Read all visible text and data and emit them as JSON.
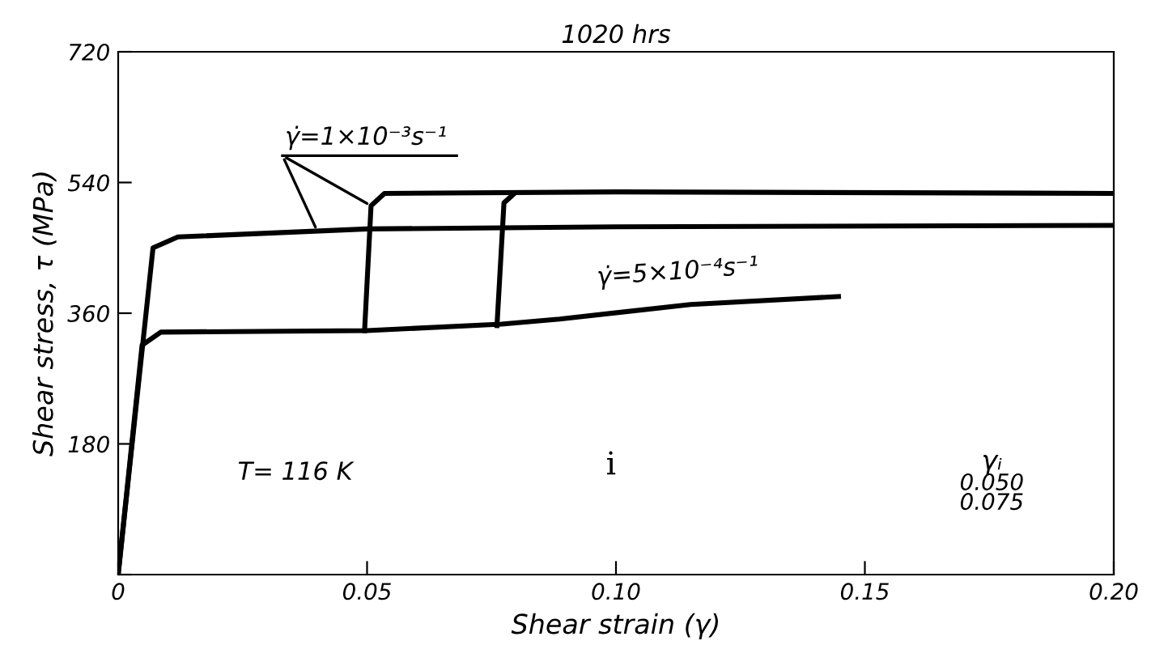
{
  "chart_data": {
    "type": "line",
    "title": "1020 hrs",
    "xlabel": "Shear strain (γ)",
    "ylabel": "Shear stress, τ (MPa)",
    "xlim": [
      0,
      0.2
    ],
    "ylim": [
      0,
      720
    ],
    "xticks": [
      {
        "value": 0,
        "label": "0"
      },
      {
        "value": 0.05,
        "label": "0.05"
      },
      {
        "value": 0.1,
        "label": "0.10"
      },
      {
        "value": 0.15,
        "label": "0.15"
      },
      {
        "value": 0.2,
        "label": "0.20"
      }
    ],
    "yticks": [
      {
        "value": 0,
        "label": null
      },
      180,
      360,
      540,
      720
    ],
    "grid": false,
    "legend": false,
    "marker": "none",
    "line_style": "solid",
    "series": [
      {
        "color": "#000000",
        "x": [
          0,
          0.007,
          0.012,
          0.05,
          0.1,
          0.2
        ],
        "values": [
          0,
          450,
          465,
          476,
          479,
          481
        ]
      },
      {
        "color": "#000000",
        "x": [
          0,
          0.0048,
          0.0086,
          0.05,
          0.077,
          0.0887,
          0.115,
          0.1447
        ],
        "values": [
          0,
          316,
          334,
          336,
          345,
          352,
          372,
          383
        ]
      },
      {
        "color": "#000000",
        "x": [
          0.0495,
          0.0508,
          0.0535,
          0.1,
          0.2
        ],
        "values": [
          336,
          508,
          525,
          527,
          525
        ]
      },
      {
        "color": "#000000",
        "x": [
          0.0761,
          0.0775,
          0.0796
        ],
        "values": [
          343,
          512,
          525
        ]
      }
    ],
    "annotations": [
      {
        "text": "γ̇=1×10⁻³s⁻¹",
        "x": 0.0508,
        "y": 508
      },
      "γ̇=5×10⁻⁴s⁻¹",
      "T= 116 K",
      "i",
      "γᵢ",
      "0.050",
      "0.075"
    ]
  }
}
